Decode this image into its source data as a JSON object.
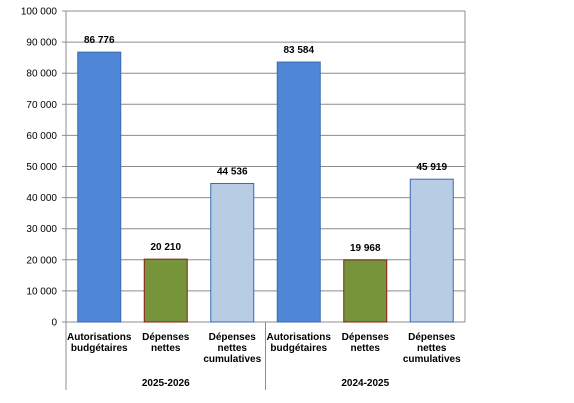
{
  "chart_data": {
    "type": "bar",
    "ylim": [
      0,
      100000
    ],
    "yticks": [
      0,
      10000,
      20000,
      30000,
      40000,
      50000,
      60000,
      70000,
      80000,
      90000,
      100000
    ],
    "ytick_labels": [
      "0",
      "10 000",
      "20 000",
      "30 000",
      "40 000",
      "50 000",
      "60 000",
      "70 000",
      "80 000",
      "90 000",
      "100 000"
    ],
    "grid": true,
    "legend": "none",
    "colors": {
      "autorisations": "#4f86d6",
      "depenses": "#76953a",
      "cumulatives": "#b8cce4"
    },
    "groups": [
      {
        "label": "2025-2026",
        "bars": [
          {
            "category": [
              "Autorisations",
              "budgétaires"
            ],
            "value": 86776,
            "label": "86 776",
            "color_key": "autorisations"
          },
          {
            "category": [
              "Dépenses",
              "nettes"
            ],
            "value": 20210,
            "label": "20 210",
            "color_key": "depenses"
          },
          {
            "category": [
              "Dépenses",
              "nettes",
              "cumulatives"
            ],
            "value": 44536,
            "label": "44 536",
            "color_key": "cumulatives"
          }
        ]
      },
      {
        "label": "2024-2025",
        "bars": [
          {
            "category": [
              "Autorisations",
              "budgétaires"
            ],
            "value": 83584,
            "label": "83 584",
            "color_key": "autorisations"
          },
          {
            "category": [
              "Dépenses",
              "nettes"
            ],
            "value": 19968,
            "label": "19 968",
            "color_key": "depenses"
          },
          {
            "category": [
              "Dépenses",
              "nettes",
              "cumulatives"
            ],
            "value": 45919,
            "label": "45 919",
            "color_key": "cumulatives"
          }
        ]
      }
    ]
  }
}
